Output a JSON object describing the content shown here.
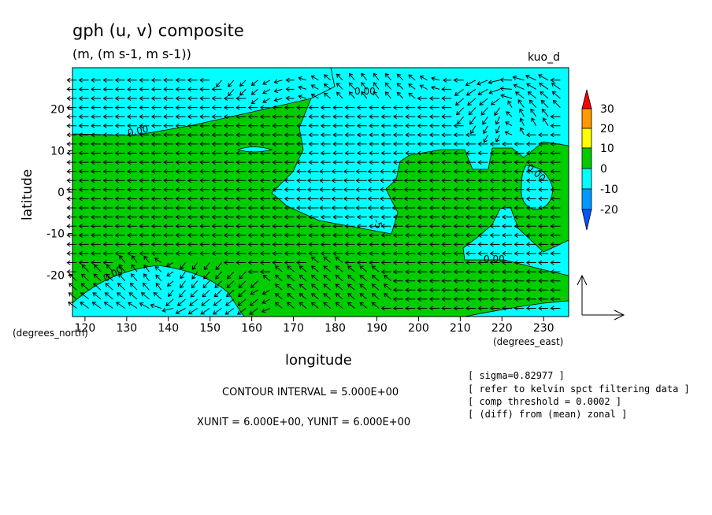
{
  "title": "gph (u, v) composite",
  "units": "(m, (m s-1, m s-1))",
  "dataset": "kuo_d",
  "chart_data": {
    "type": "contour-vector",
    "xlabel": "longitude",
    "ylabel": "latitude",
    "x_units_label": "(degrees_east)",
    "y_units_label": "(degrees_north)",
    "xlim": [
      117,
      236
    ],
    "ylim": [
      -30,
      30
    ],
    "xticks": [
      "120",
      "130",
      "140",
      "150",
      "160",
      "170",
      "180",
      "190",
      "200",
      "210",
      "220",
      "230"
    ],
    "yticks": [
      "20",
      "10",
      "0",
      "-10",
      "-20"
    ],
    "contour_labels": [
      "0.00",
      "0.00",
      "0.00",
      "0.00",
      "0.00",
      "-5"
    ],
    "colorbar": {
      "ticks": [
        "30",
        "20",
        "10",
        "0",
        "-10",
        "-20"
      ],
      "colors": [
        "#ff0000",
        "#ff9900",
        "#ffff00",
        "#00cc00",
        "#00ffff",
        "#0099ff",
        "#0055ff"
      ]
    },
    "fill_colors": {
      "positive": "#00cc00",
      "negative": "#00ffff"
    },
    "contour_interval_text": "CONTOUR INTERVAL = 5.000E+00",
    "vector_unit_text": "XUNIT = 6.000E+00, YUNIT = 6.000E+00"
  },
  "notes": [
    "[ sigma=0.82977 ]",
    "[ refer to kelvin spct filtering data ]",
    "[ comp threshold = 0.0002 ]",
    "[ (diff) from (mean) zonal ]"
  ]
}
